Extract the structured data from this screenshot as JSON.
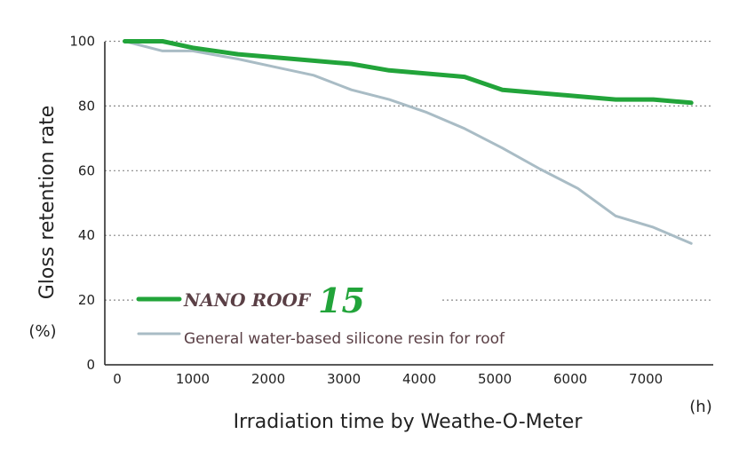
{
  "chart_data": {
    "type": "line",
    "xlabel": "Irradiation time by Weathe-O-Meter",
    "x_unit": "(h)",
    "ylabel": "Gloss retention rate",
    "y_unit": "(%)",
    "xlim": [
      0,
      7700
    ],
    "ylim": [
      0,
      100
    ],
    "xticks": [
      0,
      1000,
      2000,
      3000,
      4000,
      5000,
      6000,
      7000
    ],
    "yticks": [
      0,
      20,
      40,
      60,
      80,
      100
    ],
    "grid": "horizontal dotted",
    "legend_position": "bottom-left",
    "series": [
      {
        "name_prefix": "NANO ROOF",
        "name_suffix": "15",
        "color": "#22a43a",
        "points": [
          [
            100,
            100
          ],
          [
            600,
            100
          ],
          [
            1000,
            98
          ],
          [
            1600,
            96
          ],
          [
            2600,
            94
          ],
          [
            3100,
            93
          ],
          [
            3600,
            91
          ],
          [
            4600,
            89
          ],
          [
            5100,
            85
          ],
          [
            6100,
            83
          ],
          [
            6600,
            82
          ],
          [
            7100,
            82
          ],
          [
            7600,
            81
          ]
        ]
      },
      {
        "name": "General water-based silicone resin for roof",
        "color": "#a9bcc5",
        "points": [
          [
            100,
            100
          ],
          [
            600,
            97
          ],
          [
            1000,
            97
          ],
          [
            1600,
            94.5
          ],
          [
            2100,
            92
          ],
          [
            2600,
            89.5
          ],
          [
            3100,
            85
          ],
          [
            3600,
            82
          ],
          [
            4100,
            78
          ],
          [
            4600,
            73
          ],
          [
            5100,
            67
          ],
          [
            5600,
            60.5
          ],
          [
            6100,
            54.5
          ],
          [
            6600,
            46
          ],
          [
            7100,
            42.5
          ],
          [
            7600,
            37.5
          ]
        ]
      }
    ]
  }
}
